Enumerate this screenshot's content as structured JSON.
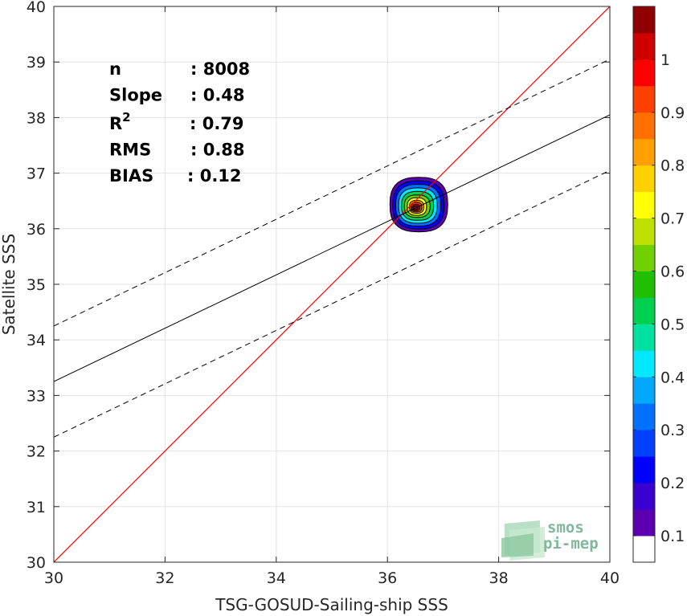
{
  "chart_data": {
    "type": "scatter",
    "xlabel": "TSG-GOSUD-Sailing-ship SSS",
    "ylabel": "Satellite SSS",
    "xlim": [
      30,
      40
    ],
    "ylim": [
      30,
      40
    ],
    "xticks": [
      30,
      32,
      34,
      36,
      38,
      40
    ],
    "yticks": [
      30,
      31,
      32,
      33,
      34,
      35,
      36,
      37,
      38,
      39,
      40
    ],
    "grid": true,
    "identity_line": {
      "color": "#ff0000"
    },
    "fit_line": {
      "slope": 0.48,
      "intercept": 18.85,
      "color": "#000000"
    },
    "fit_band": {
      "offset": 1.0,
      "style": "dashed"
    },
    "density_center": [
      36.55,
      36.42
    ],
    "stats": [
      {
        "label": "n",
        "value": ": 8008"
      },
      {
        "label": "Slope",
        "value": ": 0.48"
      },
      {
        "label": "R",
        "sup": "2",
        "value": ": 0.79"
      },
      {
        "label": "RMS",
        "value": ": 0.88"
      },
      {
        "label": "BIAS",
        "value": ": 0.12"
      }
    ],
    "colorbar": {
      "ticks": [
        "0.1",
        "0.2",
        "0.3",
        "0.4",
        "0.5",
        "0.6",
        "0.7",
        "0.8",
        "0.9",
        "1"
      ],
      "colors": [
        "#ffffff",
        "#5a00b0",
        "#3a00d0",
        "#0000ff",
        "#0040ff",
        "#0070ff",
        "#00a8ff",
        "#00e8ff",
        "#00e0a0",
        "#00d050",
        "#20c000",
        "#70d000",
        "#c0e000",
        "#ffff00",
        "#ffd000",
        "#ffa000",
        "#ff7000",
        "#ff4000",
        "#ff0000",
        "#d00000",
        "#900000"
      ]
    },
    "logo": {
      "line1": "smos",
      "line2": "pi-mep"
    }
  }
}
